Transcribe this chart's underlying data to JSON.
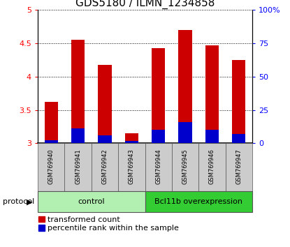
{
  "title": "GDS5180 / ILMN_1234858",
  "samples": [
    "GSM769940",
    "GSM769941",
    "GSM769942",
    "GSM769943",
    "GSM769944",
    "GSM769945",
    "GSM769946",
    "GSM769947"
  ],
  "red_values": [
    3.62,
    4.55,
    4.18,
    3.15,
    4.43,
    4.7,
    4.47,
    4.25
  ],
  "blue_values": [
    3.05,
    3.22,
    3.12,
    3.03,
    3.2,
    3.32,
    3.2,
    3.14
  ],
  "ymin": 3.0,
  "ymax": 5.0,
  "yticks": [
    3.0,
    3.5,
    4.0,
    4.5,
    5.0
  ],
  "ytick_labels_left": [
    "3",
    "3.5",
    "4",
    "4.5",
    "5"
  ],
  "right_yticks": [
    0,
    25,
    50,
    75,
    100
  ],
  "right_ytick_labels": [
    "0",
    "25",
    "50",
    "75",
    "100%"
  ],
  "bar_width": 0.5,
  "bar_color_red": "#cc0000",
  "bar_color_blue": "#0000cc",
  "control_label": "control",
  "treatment_label": "Bcl11b overexpression",
  "protocol_label": "protocol",
  "legend_red": "transformed count",
  "legend_blue": "percentile rank within the sample",
  "control_bg": "#b2f0b2",
  "treatment_bg": "#33cc33",
  "panel_bg": "#cccccc",
  "plot_bg": "#ffffff",
  "title_fontsize": 11,
  "tick_fontsize": 8,
  "sample_fontsize": 6,
  "protocol_fontsize": 8,
  "legend_fontsize": 8
}
